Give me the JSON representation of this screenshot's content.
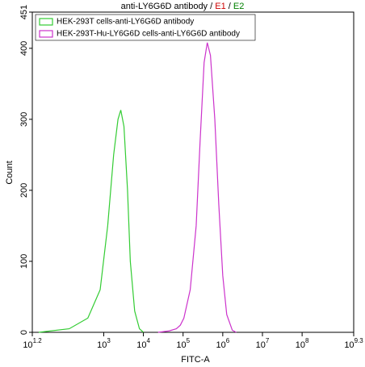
{
  "chart_data": {
    "type": "line",
    "title_parts": [
      {
        "text": "anti-LY6G6D antibody / ",
        "color": "#000000"
      },
      {
        "text": "E1",
        "color": "#cc0000"
      },
      {
        "text": " / ",
        "color": "#000000"
      },
      {
        "text": "E2",
        "color": "#008000"
      }
    ],
    "x_label": "FITC-A",
    "y_label": "Count",
    "x_log": true,
    "xlim": [
      15.848931924611133,
      1995262314.9688666
    ],
    "xticks": [
      {
        "value": 15.848931924611133,
        "label": "10",
        "exponent": "1.2"
      },
      {
        "value": 1000,
        "label": "10",
        "exponent": "3"
      },
      {
        "value": 10000,
        "label": "10",
        "exponent": "4"
      },
      {
        "value": 100000,
        "label": "10",
        "exponent": "5"
      },
      {
        "value": 1000000,
        "label": "10",
        "exponent": "6"
      },
      {
        "value": 10000000,
        "label": "10",
        "exponent": "7"
      },
      {
        "value": 100000000,
        "label": "10",
        "exponent": "8"
      },
      {
        "value": 1995262314.9688666,
        "label": "10",
        "exponent": "9.3"
      }
    ],
    "ylim": [
      0,
      451
    ],
    "yticks": [
      0,
      100,
      200,
      300,
      400,
      451
    ],
    "legend": "top-left",
    "series": [
      {
        "name": "HEK-293T cells-anti-LY6G6D antibody",
        "color": "#33cc33",
        "x": [
          23,
          135,
          398,
          813,
          1259,
          1778,
          2291,
          2692,
          3236,
          3981,
          4677,
          6026,
          7943,
          10000
        ],
        "values": [
          0,
          5,
          20,
          60,
          150,
          250,
          300,
          313,
          290,
          200,
          100,
          30,
          5,
          0
        ]
      },
      {
        "name": "HEK-293T-Hu-LY6G6D cells-anti-LY6G6D antibody",
        "color": "#cc33cc",
        "x": [
          23442,
          44668,
          67608,
          85114,
          104713,
          151356,
          213796,
          269153,
          338844,
          407380,
          489779,
          630957,
          794328,
          1000000,
          1258925,
          1737801,
          2187762
        ],
        "values": [
          0,
          2,
          5,
          10,
          20,
          60,
          150,
          270,
          380,
          408,
          390,
          300,
          180,
          80,
          25,
          3,
          0
        ]
      }
    ]
  }
}
